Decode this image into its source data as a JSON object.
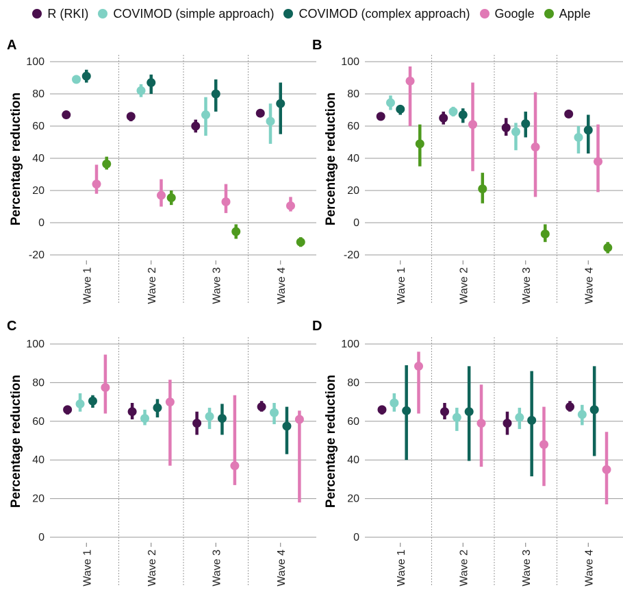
{
  "legend": [
    {
      "label": "R (RKI)",
      "color": "#4a0f4d"
    },
    {
      "label": "COVIMOD (simple approach)",
      "color": "#7fd1c4"
    },
    {
      "label": "COVIMOD (complex approach)",
      "color": "#0f6459"
    },
    {
      "label": "Google",
      "color": "#e07ab5"
    },
    {
      "label": "Apple",
      "color": "#4e9a1e"
    }
  ],
  "chart_data": [
    {
      "panel": "A",
      "type": "scatter",
      "categories": [
        "Wave 1",
        "Wave 2",
        "Wave 3",
        "Wave 4"
      ],
      "ylabel": "Percentage reduction",
      "ylim": [
        -25,
        105
      ],
      "yticks": [
        -20,
        0,
        20,
        40,
        60,
        80,
        100
      ],
      "grid": "horizontal",
      "series": [
        {
          "name": "R (RKI)",
          "values": [
            67,
            66,
            60,
            68
          ],
          "lower": [
            65,
            63,
            56,
            66
          ],
          "upper": [
            69,
            68,
            64,
            70
          ]
        },
        {
          "name": "COVIMOD (simple approach)",
          "values": [
            89,
            82,
            67,
            63
          ],
          "lower": [
            88,
            78,
            54,
            49
          ],
          "upper": [
            90,
            86,
            78,
            74
          ]
        },
        {
          "name": "COVIMOD (complex approach)",
          "values": [
            91,
            87,
            80,
            74
          ],
          "lower": [
            87,
            80,
            69,
            55
          ],
          "upper": [
            95,
            92,
            89,
            87
          ]
        },
        {
          "name": "Google",
          "values": [
            24,
            17,
            13,
            10.5
          ],
          "lower": [
            18,
            10,
            6,
            7
          ],
          "upper": [
            36,
            27,
            24,
            16
          ]
        },
        {
          "name": "Apple",
          "values": [
            36.5,
            15.5,
            -5.5,
            -12
          ],
          "lower": [
            33,
            11,
            -10,
            -15
          ],
          "upper": [
            41,
            20,
            -1,
            -9
          ]
        }
      ]
    },
    {
      "panel": "B",
      "type": "scatter",
      "categories": [
        "Wave 1",
        "Wave 2",
        "Wave 3",
        "Wave 4"
      ],
      "ylabel": "Percentage reduction",
      "ylim": [
        -25,
        105
      ],
      "yticks": [
        -20,
        0,
        20,
        40,
        60,
        80,
        100
      ],
      "grid": "horizontal",
      "series": [
        {
          "name": "R (RKI)",
          "values": [
            66,
            65,
            59,
            67.5
          ],
          "lower": [
            64,
            61,
            54,
            65
          ],
          "upper": [
            68,
            69,
            65,
            70
          ]
        },
        {
          "name": "COVIMOD (simple approach)",
          "values": [
            74.5,
            69,
            56.5,
            53
          ],
          "lower": [
            70,
            66,
            45,
            43
          ],
          "upper": [
            79,
            72,
            62,
            60
          ]
        },
        {
          "name": "COVIMOD (complex approach)",
          "values": [
            70.5,
            67,
            61.5,
            57.5
          ],
          "lower": [
            67,
            62,
            53,
            43
          ],
          "upper": [
            73,
            71,
            69,
            67
          ]
        },
        {
          "name": "Google",
          "values": [
            88,
            61,
            47,
            38
          ],
          "lower": [
            60,
            32,
            16,
            19
          ],
          "upper": [
            97,
            87,
            81,
            61
          ]
        },
        {
          "name": "Apple",
          "values": [
            49,
            21,
            -7,
            -15.5
          ],
          "lower": [
            35,
            12,
            -12,
            -19
          ],
          "upper": [
            61,
            31,
            -1,
            -12
          ]
        }
      ]
    },
    {
      "panel": "C",
      "type": "scatter",
      "categories": [
        "Wave 1",
        "Wave 2",
        "Wave 3",
        "Wave 4"
      ],
      "ylabel": "Percentage reduction",
      "ylim": [
        -5,
        105
      ],
      "yticks": [
        0,
        20,
        40,
        60,
        80,
        100
      ],
      "grid": "horizontal",
      "series": [
        {
          "name": "R (RKI)",
          "values": [
            66,
            65,
            59,
            67.5
          ],
          "lower": [
            63.5,
            61,
            53,
            65
          ],
          "upper": [
            68,
            69.5,
            65,
            70.5
          ]
        },
        {
          "name": "COVIMOD (simple approach)",
          "values": [
            69,
            61.5,
            62.5,
            64.5
          ],
          "lower": [
            65,
            58,
            56,
            58.5
          ],
          "upper": [
            74.5,
            66,
            67,
            69.5
          ]
        },
        {
          "name": "COVIMOD (complex approach)",
          "values": [
            70.5,
            67,
            61.5,
            57.5
          ],
          "lower": [
            67,
            62,
            53,
            43
          ],
          "upper": [
            73.5,
            71.5,
            69,
            67.5
          ]
        },
        {
          "name": "Google",
          "values": [
            77.5,
            70,
            37,
            61
          ],
          "lower": [
            64,
            37,
            27,
            18
          ],
          "upper": [
            94.5,
            81.5,
            73.5,
            65.5
          ]
        }
      ]
    },
    {
      "panel": "D",
      "type": "scatter",
      "categories": [
        "Wave 1",
        "Wave 2",
        "Wave 3",
        "Wave 4"
      ],
      "ylabel": "Percentage reduction",
      "ylim": [
        -5,
        105
      ],
      "yticks": [
        0,
        20,
        40,
        60,
        80,
        100
      ],
      "grid": "horizontal",
      "series": [
        {
          "name": "R (RKI)",
          "values": [
            66,
            65,
            59,
            67.5
          ],
          "lower": [
            63.5,
            61,
            53,
            65
          ],
          "upper": [
            68,
            69.5,
            65,
            70.5
          ]
        },
        {
          "name": "COVIMOD (simple approach)",
          "values": [
            69.5,
            62,
            62,
            63.5
          ],
          "lower": [
            65,
            55,
            56,
            58
          ],
          "upper": [
            74.5,
            67,
            67,
            68.5
          ]
        },
        {
          "name": "COVIMOD (complex approach)",
          "values": [
            65.5,
            65,
            60.5,
            66
          ],
          "lower": [
            40,
            39.5,
            31.5,
            42
          ],
          "upper": [
            89,
            88.5,
            86,
            88.5
          ]
        },
        {
          "name": "Google",
          "values": [
            88.5,
            59,
            48,
            35
          ],
          "lower": [
            64,
            36.5,
            26.5,
            17
          ],
          "upper": [
            96,
            79,
            67.5,
            54.5
          ]
        }
      ]
    }
  ]
}
